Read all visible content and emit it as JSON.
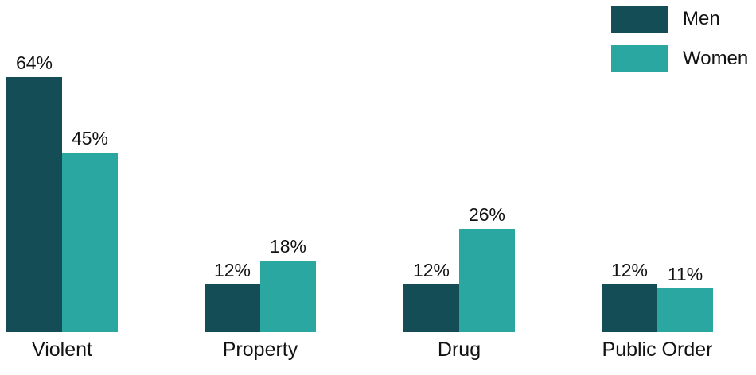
{
  "chart_data": {
    "type": "bar",
    "title": "",
    "categories": [
      "Violent",
      "Property",
      "Drug",
      "Public Order"
    ],
    "series": [
      {
        "name": "Men",
        "color": "#144D56",
        "values": [
          64,
          12,
          12,
          12
        ]
      },
      {
        "name": "Women",
        "color": "#2AA7A1",
        "values": [
          45,
          18,
          26,
          11
        ]
      }
    ],
    "value_suffix": "%",
    "data_labels": true,
    "axes_visible": false,
    "grid": false,
    "legend_position": "top-right",
    "ylim": [
      0,
      70
    ]
  },
  "colors": {
    "text": "#121212",
    "background": "#FFFFFF"
  }
}
